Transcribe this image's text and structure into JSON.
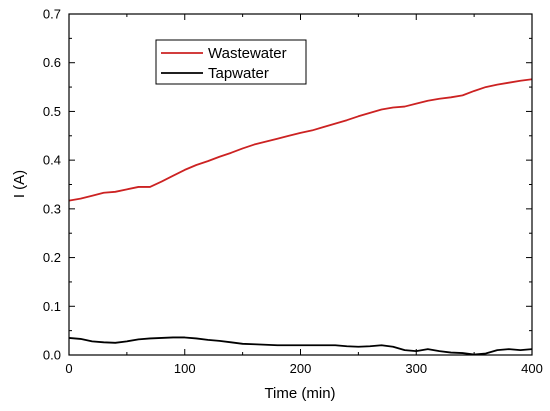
{
  "chart_data": {
    "type": "line",
    "title": "",
    "xlabel": "Time (min)",
    "ylabel": "I (A)",
    "xlim": [
      0,
      400
    ],
    "ylim": [
      0,
      0.7
    ],
    "x_ticks": [
      0,
      100,
      200,
      300,
      400
    ],
    "y_ticks": [
      0.0,
      0.1,
      0.2,
      0.3,
      0.4,
      0.5,
      0.6,
      0.7
    ],
    "x_tick_labels": [
      "0",
      "100",
      "200",
      "300",
      "400"
    ],
    "y_tick_labels": [
      "0.0",
      "0.1",
      "0.2",
      "0.3",
      "0.4",
      "0.5",
      "0.6",
      "0.7"
    ],
    "grid": false,
    "legend_position": "top-left",
    "series": [
      {
        "name": "Wastewater",
        "color": "#cc2222",
        "x": [
          0,
          10,
          20,
          30,
          40,
          50,
          60,
          70,
          80,
          90,
          100,
          110,
          120,
          130,
          140,
          150,
          160,
          170,
          180,
          190,
          200,
          210,
          220,
          230,
          240,
          250,
          260,
          270,
          280,
          290,
          300,
          310,
          320,
          330,
          340,
          350,
          360,
          370,
          380,
          390,
          400
        ],
        "values": [
          0.317,
          0.321,
          0.327,
          0.333,
          0.335,
          0.34,
          0.345,
          0.345,
          0.356,
          0.368,
          0.38,
          0.39,
          0.398,
          0.407,
          0.415,
          0.424,
          0.432,
          0.438,
          0.444,
          0.45,
          0.456,
          0.461,
          0.468,
          0.475,
          0.482,
          0.49,
          0.497,
          0.504,
          0.508,
          0.51,
          0.516,
          0.522,
          0.526,
          0.529,
          0.533,
          0.542,
          0.55,
          0.555,
          0.559,
          0.563,
          0.566
        ]
      },
      {
        "name": "Tapwater",
        "color": "#000000",
        "x": [
          0,
          10,
          20,
          30,
          40,
          50,
          60,
          70,
          80,
          90,
          100,
          110,
          120,
          130,
          140,
          150,
          160,
          170,
          180,
          190,
          200,
          210,
          220,
          230,
          240,
          250,
          260,
          270,
          280,
          290,
          300,
          310,
          320,
          330,
          340,
          350,
          360,
          370,
          380,
          390,
          400
        ],
        "values": [
          0.035,
          0.033,
          0.028,
          0.026,
          0.025,
          0.028,
          0.032,
          0.034,
          0.035,
          0.036,
          0.036,
          0.034,
          0.031,
          0.029,
          0.026,
          0.023,
          0.022,
          0.021,
          0.02,
          0.02,
          0.02,
          0.02,
          0.02,
          0.02,
          0.018,
          0.017,
          0.018,
          0.02,
          0.017,
          0.01,
          0.008,
          0.012,
          0.008,
          0.005,
          0.004,
          0.001,
          0.003,
          0.01,
          0.012,
          0.01,
          0.012
        ]
      }
    ]
  }
}
